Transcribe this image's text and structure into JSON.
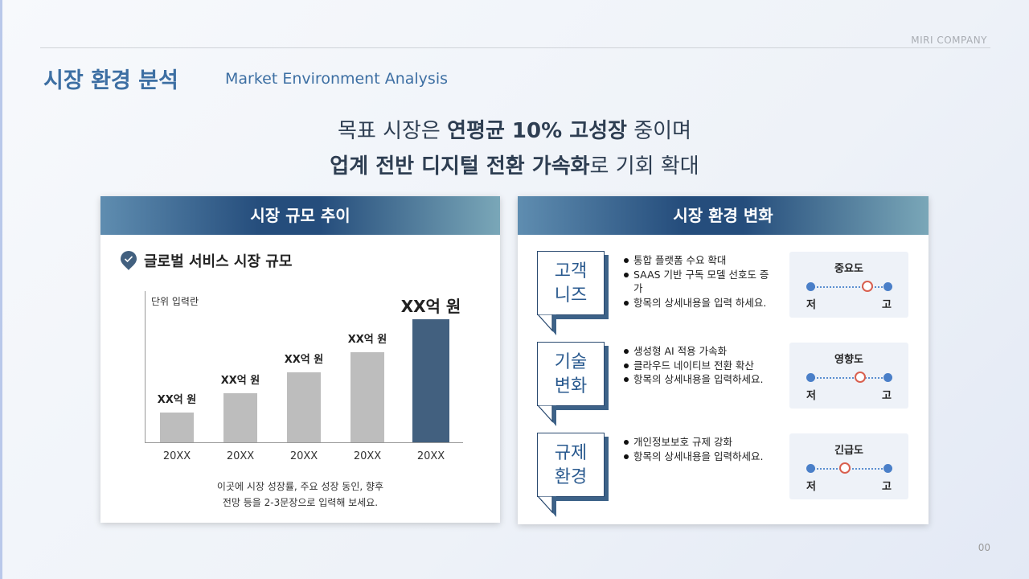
{
  "header": {
    "company": "MIRI COMPANY",
    "title": "시장 환경 분석",
    "subtitle": "Market Environment Analysis"
  },
  "headline": {
    "line1": [
      "목표 시장은 ",
      "연평균 10% 고성장",
      " 중이며"
    ],
    "line2": [
      "업계 전반 디지털 전환 가속화",
      "로 기회 확대"
    ]
  },
  "left_card": {
    "title": "시장 규모 추이",
    "section_title": "글로벌 서비스 시장 규모",
    "unit_label": "단위 입력란",
    "description": [
      "이곳에 시장 성장률, 주요 성장 동인, 향후",
      "전망 등을 2-3문장으로 입력해 보세요."
    ]
  },
  "chart_data": {
    "type": "bar",
    "categories": [
      "20XX",
      "20XX",
      "20XX",
      "20XX",
      "20XX"
    ],
    "values": [
      24,
      40,
      57,
      73,
      100
    ],
    "data_labels": [
      "XX억 원",
      "XX억 원",
      "XX억 원",
      "XX억 원",
      "XX억 원"
    ],
    "highlight_index": 4,
    "ylabel": "단위 입력란",
    "colors": {
      "bar": "#bdbdbd",
      "highlight": "#42607f"
    },
    "grid": false
  },
  "right_card": {
    "title": "시장 환경 변화",
    "rows": [
      {
        "label": [
          "고객",
          "니즈"
        ],
        "bullets": [
          "통합 플랫폼 수요 확대",
          "SAAS 기반 구독 모델 선호도 증가",
          "항목의 상세내용을 입력 하세요."
        ],
        "gauge": {
          "title": "중요도",
          "low": "저",
          "high": "고",
          "level": 0.74
        }
      },
      {
        "label": [
          "기술",
          "변화"
        ],
        "bullets": [
          "생성형 AI 적용 가속화",
          "클라우드 네이티브 전환 확산",
          "항목의 상세내용을 입력하세요."
        ],
        "gauge": {
          "title": "영향도",
          "low": "저",
          "high": "고",
          "level": 0.65
        }
      },
      {
        "label": [
          "규제",
          "환경"
        ],
        "bullets": [
          "개인정보보호 규제 강화",
          "항목의 상세내용을 입력하세요."
        ],
        "gauge": {
          "title": "긴급도",
          "low": "저",
          "high": "고",
          "level": 0.45
        }
      }
    ]
  },
  "page_number": "00"
}
